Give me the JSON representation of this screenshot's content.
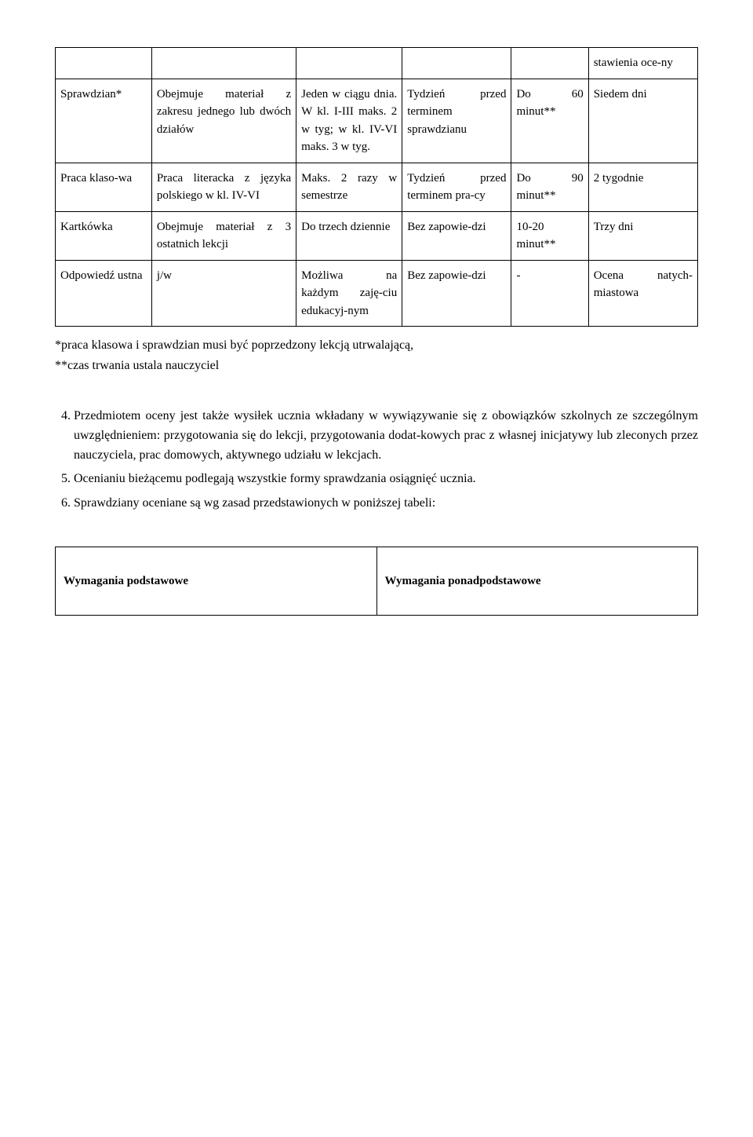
{
  "table1": {
    "col_widths": [
      "15%",
      "22.5%",
      "16.5%",
      "17%",
      "12%",
      "17%"
    ],
    "rows": [
      {
        "cells": [
          "",
          "",
          "",
          "",
          "",
          "stawienia oce-ny"
        ]
      },
      {
        "cells": [
          "Sprawdzian*",
          "Obejmuje materiał z zakresu jednego lub dwóch działów",
          "Jeden w ciągu dnia. W kl. I-III maks. 2 w tyg; w kl. IV-VI maks. 3 w tyg.",
          "Tydzień przed terminem sprawdzianu",
          "Do 60 minut**",
          "Siedem dni"
        ]
      },
      {
        "cells": [
          "Praca klaso-wa",
          "Praca literacka z języka polskiego w kl. IV-VI",
          "Maks. 2 razy w semestrze",
          "Tydzień przed terminem pra-cy",
          "Do 90 minut**",
          "2 tygodnie"
        ]
      },
      {
        "cells": [
          "Kartkówka",
          "Obejmuje materiał z 3 ostatnich lekcji",
          "Do trzech dziennie",
          "Bez zapowie-dzi",
          "10-20 minut**",
          "Trzy dni"
        ]
      },
      {
        "cells": [
          "Odpowiedź ustna",
          "j/w",
          "Możliwa na każdym zaję-ciu edukacyj-nym",
          "Bez zapowie-dzi",
          "-",
          "Ocena natych-miastowa"
        ]
      }
    ]
  },
  "notes": {
    "line1": "*praca klasowa i sprawdzian musi być poprzedzony lekcją utrwalającą,",
    "line2": "**czas trwania ustala nauczyciel"
  },
  "list": {
    "start": 4,
    "items": [
      "Przedmiotem oceny jest także wysiłek ucznia wkładany w wywiązywanie się  z obowiązków szkolnych ze szczególnym uwzględnieniem: przygotowania się do lekcji, przygotowania dodat-kowych prac z własnej inicjatywy lub zleconych przez nauczyciela, prac domowych, aktywnego udziału w lekcjach.",
      "Ocenianiu bieżącemu podlegają wszystkie formy sprawdzania osiągnięć ucznia.",
      "Sprawdziany oceniane są wg zasad przedstawionych w poniższej tabeli:"
    ]
  },
  "table2": {
    "cells": [
      "Wymagania podstawowe",
      "Wymagania ponadpodstawowe"
    ]
  }
}
